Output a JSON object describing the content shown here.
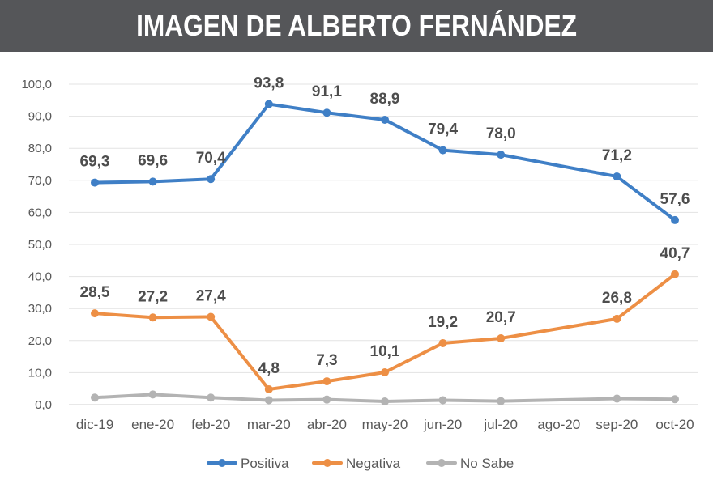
{
  "header": {
    "title": "IMAGEN DE ALBERTO FERNÁNDEZ"
  },
  "chart_data": {
    "type": "line",
    "title": "IMAGEN DE ALBERTO FERNÁNDEZ",
    "categories": [
      "dic-19",
      "ene-20",
      "feb-20",
      "mar-20",
      "abr-20",
      "may-20",
      "jun-20",
      "jul-20",
      "ago-20",
      "sep-20",
      "oct-20"
    ],
    "ylim": [
      0,
      100
    ],
    "yticks": [
      "0,0",
      "10,0",
      "20,0",
      "30,0",
      "40,0",
      "50,0",
      "60,0",
      "70,0",
      "80,0",
      "90,0",
      "100,0"
    ],
    "grid": true,
    "legend_position": "bottom",
    "series": [
      {
        "name": "Positiva",
        "color": "#3f7fc6",
        "values": [
          69.3,
          69.6,
          70.4,
          93.8,
          91.1,
          88.9,
          79.4,
          78.0,
          null,
          71.2,
          57.6
        ],
        "labels": [
          "69,3",
          "69,6",
          "70,4",
          "93,8",
          "91,1",
          "88,9",
          "79,4",
          "78,0",
          null,
          "71,2",
          "57,6"
        ]
      },
      {
        "name": "Negativa",
        "color": "#ed8f45",
        "values": [
          28.5,
          27.2,
          27.4,
          4.8,
          7.3,
          10.1,
          19.2,
          20.7,
          null,
          26.8,
          40.7
        ],
        "labels": [
          "28,5",
          "27,2",
          "27,4",
          "4,8",
          "7,3",
          "10,1",
          "19,2",
          "20,7",
          null,
          "26,8",
          "40,7"
        ]
      },
      {
        "name": "No Sabe",
        "color": "#b3b3b3",
        "values": [
          2.2,
          3.2,
          2.2,
          1.4,
          1.6,
          1.0,
          1.4,
          1.1,
          null,
          1.9,
          1.7
        ],
        "labels": [
          null,
          null,
          null,
          null,
          null,
          null,
          null,
          null,
          null,
          null,
          null
        ]
      }
    ]
  }
}
